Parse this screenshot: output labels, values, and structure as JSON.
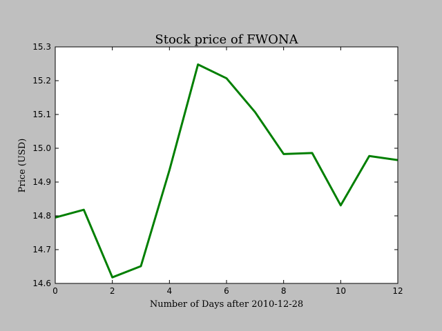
{
  "chart_data": {
    "type": "line",
    "title": "Stock price of FWONA",
    "xlabel": "Number of Days after 2010-12-28",
    "ylabel": "Price (USD)",
    "xlim": [
      0,
      12
    ],
    "ylim": [
      14.6,
      15.3
    ],
    "x_ticks": [
      "0",
      "2",
      "4",
      "6",
      "8",
      "10",
      "12"
    ],
    "y_ticks": [
      "14.6",
      "14.7",
      "14.8",
      "14.9",
      "15.0",
      "15.1",
      "15.2",
      "15.3"
    ],
    "grid": false,
    "series": [
      {
        "color": "#007f00",
        "x": [
          0,
          1,
          2,
          3,
          4,
          5,
          6,
          7,
          8,
          9,
          10,
          11,
          12
        ],
        "y": [
          14.795,
          14.818,
          14.618,
          14.651,
          14.935,
          15.248,
          15.207,
          15.107,
          14.983,
          14.986,
          14.831,
          14.977,
          14.965
        ]
      }
    ]
  }
}
